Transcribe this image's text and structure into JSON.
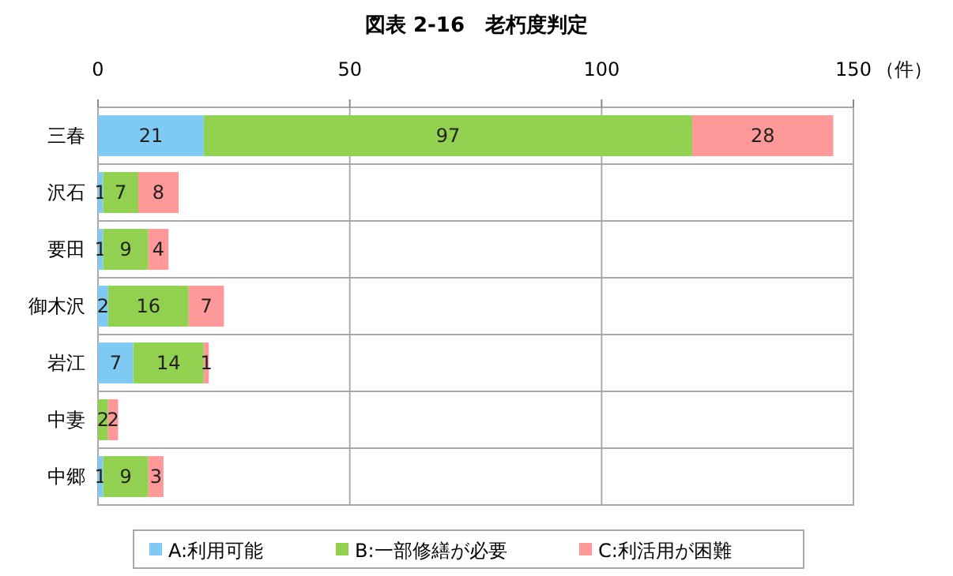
{
  "chart_data": {
    "type": "bar",
    "orientation": "horizontal",
    "stacked": true,
    "title": "図表 2-16　老朽度判定",
    "xlabel": "（件）",
    "categories": [
      "三春",
      "沢石",
      "要田",
      "御木沢",
      "岩江",
      "中妻",
      "中郷"
    ],
    "series": [
      {
        "name": "A:利用可能",
        "color": "#7fcaf5",
        "values": [
          21,
          1,
          1,
          2,
          7,
          null,
          1
        ]
      },
      {
        "name": "B:一部修繕が必要",
        "color": "#92d050",
        "values": [
          97,
          7,
          9,
          16,
          14,
          2,
          9
        ]
      },
      {
        "name": "C:利活用が困難",
        "color": "#ff9999",
        "values": [
          28,
          8,
          4,
          7,
          1,
          2,
          3
        ]
      }
    ],
    "xlim": [
      0,
      150
    ],
    "xticks": [
      0,
      50,
      100,
      150
    ],
    "grid": true,
    "legend": "bottom",
    "data_labels": true
  }
}
